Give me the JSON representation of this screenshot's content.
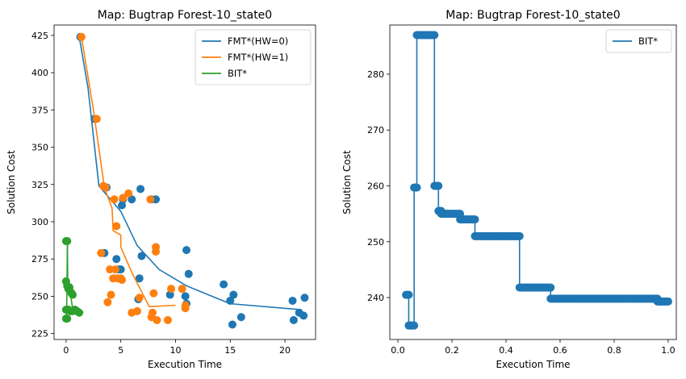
{
  "chart_data": [
    {
      "type": "scatter",
      "title": "Map: Bugtrap Forest-10_state0",
      "xlabel": "Execution Time",
      "ylabel": "Solution Cost",
      "xlim": [
        -1.1,
        22.8
      ],
      "ylim": [
        221,
        432
      ],
      "xticks": [
        0,
        5,
        10,
        15,
        20
      ],
      "yticks": [
        225,
        250,
        275,
        300,
        325,
        350,
        375,
        400,
        425
      ],
      "legend_position": "top-right",
      "series": [
        {
          "name": "FMT*(HW=0)",
          "color": "#1f77b4",
          "points": [
            [
              1.3,
              424
            ],
            [
              2.6,
              369
            ],
            [
              3.5,
              279
            ],
            [
              3.6,
              323
            ],
            [
              3.7,
              323
            ],
            [
              4.6,
              275
            ],
            [
              4.8,
              268
            ],
            [
              5.0,
              268
            ],
            [
              5.1,
              311
            ],
            [
              5.2,
              315
            ],
            [
              6.0,
              315
            ],
            [
              6.6,
              248
            ],
            [
              6.7,
              262
            ],
            [
              6.8,
              322
            ],
            [
              6.9,
              277
            ],
            [
              7.8,
              315
            ],
            [
              8.2,
              315
            ],
            [
              9.5,
              251
            ],
            [
              10.9,
              250
            ],
            [
              11.0,
              281
            ],
            [
              11.0,
              245
            ],
            [
              11.2,
              265
            ],
            [
              14.4,
              258
            ],
            [
              15.0,
              247
            ],
            [
              15.2,
              231
            ],
            [
              15.3,
              251
            ],
            [
              16.0,
              236
            ],
            [
              20.7,
              247
            ],
            [
              20.8,
              234
            ],
            [
              21.3,
              239
            ],
            [
              21.7,
              237
            ],
            [
              21.8,
              249
            ]
          ],
          "line": [
            [
              1.2,
              424
            ],
            [
              2.0,
              390
            ],
            [
              3.0,
              324
            ],
            [
              5.0,
              307
            ],
            [
              6.5,
              284
            ],
            [
              8.5,
              268
            ],
            [
              11.0,
              257
            ],
            [
              15.0,
              245
            ],
            [
              21.5,
              241
            ]
          ]
        },
        {
          "name": "FMT*(HW=1)",
          "color": "#ff7f0e",
          "points": [
            [
              1.4,
              424
            ],
            [
              2.8,
              369
            ],
            [
              3.2,
              279
            ],
            [
              3.4,
              324
            ],
            [
              3.6,
              323
            ],
            [
              3.8,
              246
            ],
            [
              4.0,
              268
            ],
            [
              4.1,
              251
            ],
            [
              4.3,
              262
            ],
            [
              4.4,
              315
            ],
            [
              4.5,
              268
            ],
            [
              4.6,
              297
            ],
            [
              4.7,
              262
            ],
            [
              5.0,
              262
            ],
            [
              5.1,
              261
            ],
            [
              5.2,
              316
            ],
            [
              5.7,
              319
            ],
            [
              6.0,
              239
            ],
            [
              6.5,
              240
            ],
            [
              6.7,
              249
            ],
            [
              7.7,
              315
            ],
            [
              7.8,
              236
            ],
            [
              7.9,
              239
            ],
            [
              8.0,
              252
            ],
            [
              8.2,
              283
            ],
            [
              8.2,
              280
            ],
            [
              8.3,
              234
            ],
            [
              9.3,
              234
            ],
            [
              9.6,
              255
            ],
            [
              10.6,
              255
            ],
            [
              10.9,
              242
            ],
            [
              10.9,
              244
            ]
          ],
          "line": [
            [
              1.4,
              424
            ],
            [
              2.5,
              375
            ],
            [
              3.5,
              323
            ],
            [
              4.2,
              309
            ],
            [
              4.3,
              294
            ],
            [
              5.0,
              291
            ],
            [
              5.0,
              283
            ],
            [
              6.0,
              266
            ],
            [
              7.6,
              243
            ],
            [
              10.0,
              244
            ]
          ]
        },
        {
          "name": "BIT*",
          "color": "#2ca02c",
          "points": [
            [
              0.0,
              287
            ],
            [
              0.1,
              287
            ],
            [
              0.0,
              260
            ],
            [
              0.1,
              257
            ],
            [
              0.2,
              255
            ],
            [
              0.3,
              256
            ],
            [
              0.4,
              253
            ],
            [
              0.5,
              252
            ],
            [
              0.6,
              251
            ],
            [
              0.0,
              241
            ],
            [
              0.2,
              241
            ],
            [
              0.4,
              240
            ],
            [
              0.6,
              240
            ],
            [
              0.8,
              241
            ],
            [
              1.0,
              240
            ],
            [
              1.2,
              239
            ],
            [
              0.0,
              235
            ],
            [
              0.1,
              235
            ]
          ],
          "line": [
            [
              0.0,
              241
            ],
            [
              0.05,
              235
            ],
            [
              0.08,
              260
            ],
            [
              0.12,
              287
            ],
            [
              0.15,
              257
            ],
            [
              0.4,
              252
            ],
            [
              0.6,
              241
            ],
            [
              1.2,
              239
            ]
          ]
        }
      ]
    },
    {
      "type": "line",
      "title": "Map: Bugtrap Forest-10_state0",
      "xlabel": "Execution Time",
      "ylabel": "Solution Cost",
      "xlim": [
        -0.03,
        1.03
      ],
      "ylim": [
        232.5,
        288.8
      ],
      "xticks": [
        "0.0",
        "0.2",
        "0.4",
        "0.6",
        "0.8",
        "1.0"
      ],
      "yticks": [
        240,
        250,
        260,
        270,
        280
      ],
      "legend_position": "top-right",
      "series": [
        {
          "name": "BIT*",
          "color": "#1f77b4",
          "steps": [
            {
              "x0": 0.03,
              "x1": 0.04,
              "y": 240.5
            },
            {
              "x0": 0.04,
              "x1": 0.06,
              "y": 235
            },
            {
              "x0": 0.06,
              "x1": 0.07,
              "y": 259.7
            },
            {
              "x0": 0.07,
              "x1": 0.135,
              "y": 287
            },
            {
              "x0": 0.135,
              "x1": 0.15,
              "y": 260
            },
            {
              "x0": 0.15,
              "x1": 0.16,
              "y": 255.5
            },
            {
              "x0": 0.16,
              "x1": 0.23,
              "y": 255
            },
            {
              "x0": 0.23,
              "x1": 0.285,
              "y": 254
            },
            {
              "x0": 0.285,
              "x1": 0.45,
              "y": 251
            },
            {
              "x0": 0.45,
              "x1": 0.565,
              "y": 241.8
            },
            {
              "x0": 0.565,
              "x1": 0.96,
              "y": 239.8
            },
            {
              "x0": 0.96,
              "x1": 1.0,
              "y": 239.3
            }
          ]
        }
      ]
    }
  ]
}
